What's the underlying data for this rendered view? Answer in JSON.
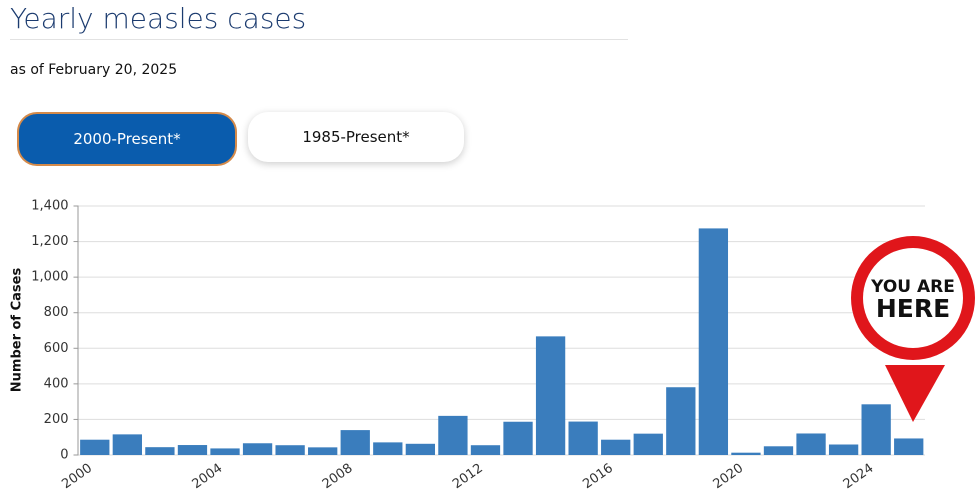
{
  "header": {
    "title": "Yearly measles cases",
    "subtitle": "as of February 20, 2025"
  },
  "buttons": [
    "2000-Present*",
    "1985-Present*"
  ],
  "badge": [
    "YOU ARE",
    "HERE"
  ],
  "chart_data": {
    "type": "bar",
    "y_label": "Number of Cases",
    "categories": [
      "2000",
      null,
      null,
      null,
      "2004",
      null,
      null,
      null,
      "2008",
      null,
      null,
      null,
      "2012",
      null,
      null,
      null,
      "2016",
      null,
      null,
      null,
      "2020",
      null,
      null,
      null,
      "2024",
      null
    ],
    "values": [
      86,
      116,
      44,
      56,
      37,
      66,
      55,
      43,
      140,
      71,
      63,
      220,
      55,
      187,
      667,
      188,
      86,
      120,
      381,
      1274,
      13,
      49,
      121,
      59,
      285,
      93
    ],
    "color": "#3a7dbd",
    "ylim": [
      0,
      1400
    ],
    "yticks": [
      0,
      {
        "value": 200,
        "label": "200"
      },
      400,
      600,
      800,
      {
        "value": 1000,
        "label": "1,000"
      },
      {
        "value": 1200,
        "label": "1,200"
      },
      {
        "value": 1400,
        "label": "1,400"
      }
    ],
    "grid": true
  }
}
